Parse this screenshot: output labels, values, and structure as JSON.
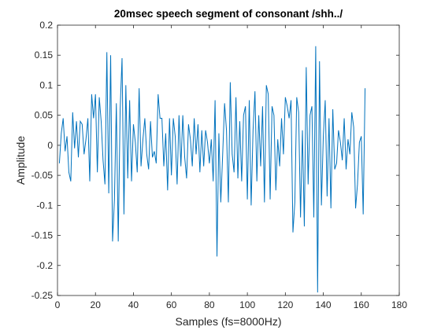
{
  "chart_data": {
    "type": "line",
    "title": "20msec speech segment of consonant /shh../",
    "xlabel": "Samples (fs=8000Hz)",
    "ylabel": "Amplitude",
    "xlim": [
      0,
      180
    ],
    "ylim": [
      -0.25,
      0.2
    ],
    "xticks": [
      "0",
      "20",
      "40",
      "60",
      "80",
      "100",
      "120",
      "140",
      "160",
      "180"
    ],
    "yticks": [
      "-0.25",
      "-0.2",
      "-0.15",
      "-0.1",
      "-0.05",
      "0",
      "0.05",
      "0.1",
      "0.15",
      "0.2"
    ],
    "grid": false,
    "line_color": "#0072bd",
    "series": [
      {
        "x_start": 1,
        "x_step": 1,
        "values": [
          -0.03,
          0.02,
          0.045,
          -0.01,
          0.015,
          -0.045,
          -0.06,
          0.055,
          -0.005,
          0.04,
          -0.02,
          0.04,
          0.035,
          -0.015,
          0.01,
          0.045,
          -0.06,
          0.085,
          0.045,
          0.085,
          -0.045,
          0.08,
          0.04,
          -0.025,
          -0.065,
          0.155,
          -0.08,
          0.15,
          -0.16,
          -0.09,
          0.07,
          -0.16,
          0.06,
          0.145,
          -0.115,
          0.1,
          -0.055,
          0.075,
          -0.06,
          0.035,
          0.005,
          -0.045,
          0.095,
          -0.035,
          0.01,
          0.045,
          -0.015,
          -0.04,
          0.04,
          -0.02,
          -0.01,
          -0.03,
          0.085,
          0.045,
          0.045,
          -0.035,
          0.02,
          -0.075,
          0.045,
          -0.05,
          0.045,
          0.015,
          -0.065,
          0.05,
          -0.035,
          0.05,
          -0.02,
          -0.055,
          0.035,
          0.01,
          -0.035,
          0.045,
          -0.015,
          0.035,
          -0.045,
          0.025,
          -0.035,
          0.025,
          0.005,
          -0.03,
          0.01,
          -0.06,
          0.075,
          -0.185,
          0.02,
          -0.095,
          -0.015,
          0.07,
          0.025,
          -0.095,
          0.105,
          -0.015,
          -0.045,
          0.08,
          -0.055,
          0.04,
          -0.06,
          0.05,
          0.065,
          -0.09,
          0.075,
          -0.1,
          0.025,
          0.09,
          -0.06,
          0.05,
          -0.035,
          0.065,
          -0.095,
          0.1,
          0.085,
          -0.09,
          0.065,
          0.05,
          -0.075,
          0.01,
          -0.035,
          0.045,
          -0.015,
          0.08,
          0.065,
          0.045,
          0.075,
          -0.145,
          -0.095,
          0.08,
          0.055,
          -0.12,
          0.025,
          -0.135,
          0.13,
          -0.065,
          0.05,
          0.065,
          -0.12,
          0.165,
          -0.245,
          0.14,
          -0.1,
          0.015,
          0.075,
          -0.085,
          0.045,
          -0.105,
          0.06,
          -0.04,
          -0.03,
          0.025,
          0.005,
          -0.025,
          0.045,
          -0.04,
          0.01,
          -0.015,
          0.055,
          0.03,
          -0.105,
          -0.065,
          0.005,
          0.015,
          -0.115,
          0.095
        ]
      }
    ]
  }
}
